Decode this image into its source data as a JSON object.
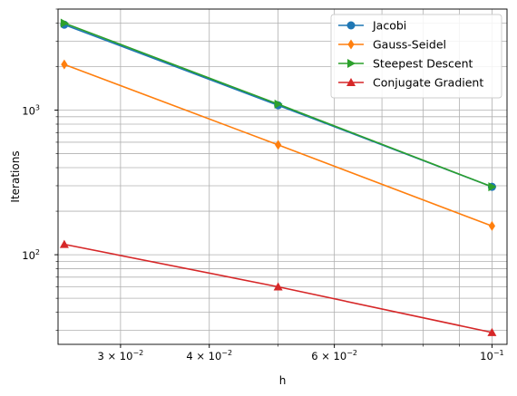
{
  "chart_data": {
    "type": "line",
    "xscale": "log",
    "yscale": "log",
    "xlabel": "h",
    "ylabel": "Iterations",
    "xlim": [
      0.0245,
      0.105
    ],
    "ylim": [
      24,
      5000
    ],
    "grid": true,
    "grid_which": "both",
    "legend_position": "top-right",
    "x_ticks": [
      {
        "value": 0.03,
        "label": "3 × 10",
        "exp": "−2"
      },
      {
        "value": 0.04,
        "label": "4 × 10",
        "exp": "−2"
      },
      {
        "value": 0.06,
        "label": "6 × 10",
        "exp": "−2"
      },
      {
        "value": 0.1,
        "label": "10",
        "exp": "−1"
      }
    ],
    "y_ticks": [
      {
        "value": 100,
        "label": "10",
        "exp": "2"
      },
      {
        "value": 1000,
        "label": "10",
        "exp": "3"
      }
    ],
    "x": [
      0.025,
      0.05,
      0.1
    ],
    "series": [
      {
        "name": "Jacobi",
        "values": [
          3900,
          1080,
          295
        ],
        "color": "#1f77b4",
        "marker": "circle"
      },
      {
        "name": "Gauss-Seidel",
        "values": [
          2070,
          575,
          158
        ],
        "color": "#ff7f0e",
        "marker": "diamond"
      },
      {
        "name": "Steepest Descent",
        "values": [
          4000,
          1100,
          295
        ],
        "color": "#2ca02c",
        "marker": "triangle-right"
      },
      {
        "name": "Conjugate Gradient",
        "values": [
          118,
          60,
          29
        ],
        "color": "#d62728",
        "marker": "triangle-up"
      }
    ]
  }
}
